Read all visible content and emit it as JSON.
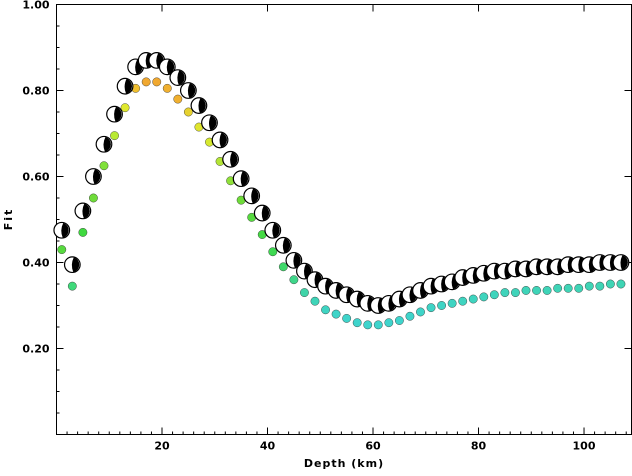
{
  "chart_data": {
    "type": "scatter",
    "xlabel": "Depth (km)",
    "ylabel": "Fit",
    "xlim": [
      0,
      109
    ],
    "ylim": [
      0.0,
      1.0
    ],
    "x_ticks": [
      20,
      40,
      60,
      80,
      100
    ],
    "x_tick_labels": [
      "20",
      "40",
      "60",
      "80",
      "100"
    ],
    "y_ticks": [
      0.2,
      0.4,
      0.6,
      0.8,
      1.0
    ],
    "y_tick_labels": [
      "0.20",
      "0.40",
      "0.60",
      "0.80",
      "1.00"
    ],
    "grid": false,
    "series": [
      {
        "marker": "focal-mechanism",
        "x": [
          1,
          3,
          5,
          7,
          9,
          11,
          13,
          15,
          17,
          19,
          21,
          23,
          25,
          27,
          29,
          31,
          33,
          35,
          37,
          39,
          41,
          43,
          45,
          47,
          49,
          51,
          53,
          55,
          57,
          59,
          61,
          63,
          65,
          67,
          69,
          71,
          73,
          75,
          77,
          79,
          81,
          83,
          85,
          87,
          89,
          91,
          93,
          95,
          97,
          99,
          101,
          103,
          105,
          107
        ],
        "y": [
          0.475,
          0.395,
          0.52,
          0.6,
          0.675,
          0.745,
          0.81,
          0.855,
          0.87,
          0.87,
          0.855,
          0.83,
          0.8,
          0.765,
          0.725,
          0.685,
          0.64,
          0.595,
          0.555,
          0.515,
          0.475,
          0.44,
          0.405,
          0.38,
          0.36,
          0.345,
          0.335,
          0.325,
          0.315,
          0.305,
          0.3,
          0.305,
          0.315,
          0.325,
          0.335,
          0.345,
          0.35,
          0.355,
          0.365,
          0.37,
          0.375,
          0.38,
          0.38,
          0.385,
          0.385,
          0.39,
          0.39,
          0.39,
          0.395,
          0.395,
          0.395,
          0.4,
          0.4,
          0.4
        ]
      },
      {
        "marker": "dot",
        "x": [
          1,
          3,
          5,
          7,
          9,
          11,
          13,
          15,
          17,
          19,
          21,
          23,
          25,
          27,
          29,
          31,
          33,
          35,
          37,
          39,
          41,
          43,
          45,
          47,
          49,
          51,
          53,
          55,
          57,
          59,
          61,
          63,
          65,
          67,
          69,
          71,
          73,
          75,
          77,
          79,
          81,
          83,
          85,
          87,
          89,
          91,
          93,
          95,
          97,
          99,
          101,
          103,
          105,
          107
        ],
        "y": [
          0.43,
          0.345,
          0.47,
          0.55,
          0.625,
          0.695,
          0.76,
          0.805,
          0.82,
          0.82,
          0.805,
          0.78,
          0.75,
          0.715,
          0.68,
          0.635,
          0.59,
          0.545,
          0.505,
          0.465,
          0.425,
          0.39,
          0.36,
          0.33,
          0.31,
          0.29,
          0.28,
          0.27,
          0.26,
          0.255,
          0.255,
          0.26,
          0.265,
          0.275,
          0.285,
          0.295,
          0.3,
          0.305,
          0.31,
          0.315,
          0.32,
          0.325,
          0.33,
          0.33,
          0.335,
          0.335,
          0.335,
          0.34,
          0.34,
          0.34,
          0.345,
          0.345,
          0.35,
          0.35
        ],
        "colors": [
          "#57d93f",
          "#3fd97a",
          "#3fd93f",
          "#6fdc3a",
          "#80e03a",
          "#b8ea33",
          "#dfe82f",
          "#f0c030",
          "#f0a830",
          "#f0a830",
          "#f0b030",
          "#f0b030",
          "#e6d12f",
          "#e0e52f",
          "#d6e82f",
          "#b3e435",
          "#8fe039",
          "#6fdc3a",
          "#57d93f",
          "#45d944",
          "#3fd952",
          "#3fd86a",
          "#3fd68a",
          "#3fd4a8",
          "#3fd4b8",
          "#3fd4c2",
          "#3fd4c8",
          "#3fd4ca",
          "#3fd4cc",
          "#3fd4cc",
          "#3fd4cc",
          "#3fd4cc",
          "#3fd4cc",
          "#3fd4ca",
          "#3fd4c8",
          "#3fd4c6",
          "#3fd4c4",
          "#3fd4c2",
          "#3fd4c0",
          "#3fd4bf",
          "#3fd4bd",
          "#3fd4bc",
          "#3fd4bb",
          "#3fd4ba",
          "#3fd4b9",
          "#3fd4b8",
          "#3fd4b8",
          "#3fd4b7",
          "#3fd4b6",
          "#3fd4b6",
          "#3fd4b5",
          "#3fd4b5",
          "#3fd4b4",
          "#3fd4b4"
        ]
      }
    ]
  }
}
